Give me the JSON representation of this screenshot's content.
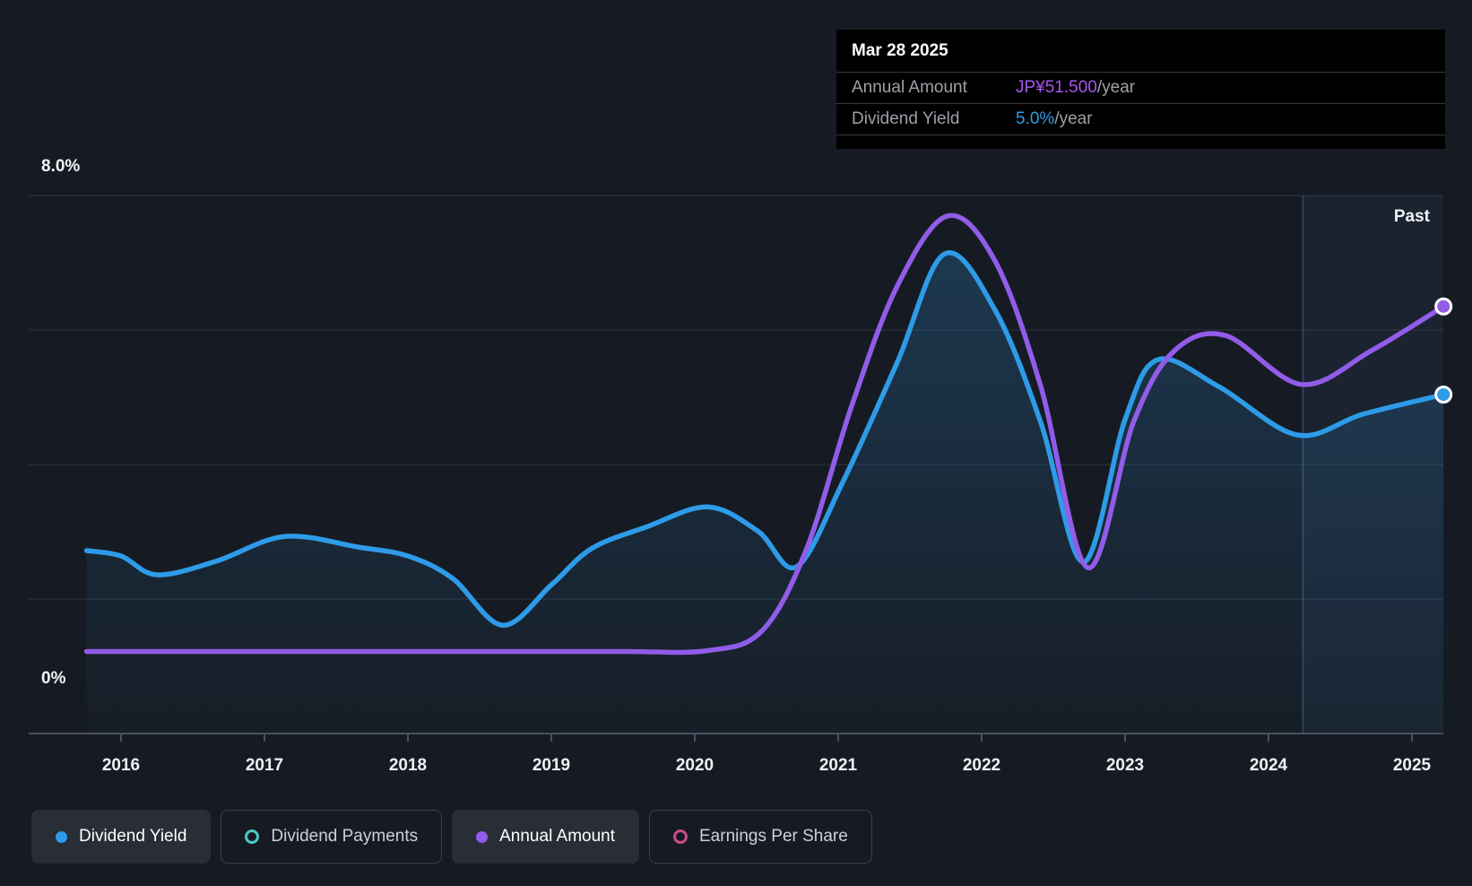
{
  "tooltip": {
    "date": "Mar 28 2025",
    "rows": [
      {
        "label": "Annual Amount",
        "value": "JP¥51.500",
        "suffix": "/year",
        "color": "#a855f0"
      },
      {
        "label": "Dividend Yield",
        "value": "5.0%",
        "suffix": "/year",
        "color": "#2e9be8"
      }
    ]
  },
  "axes": {
    "y_top_label": "8.0%",
    "y_bottom_label": "0%",
    "past_label": "Past"
  },
  "legend": {
    "items": [
      {
        "label": "Dividend Yield",
        "color": "#2e9be8",
        "style": "filled",
        "active": true
      },
      {
        "label": "Dividend Payments",
        "color": "#4ec9c0",
        "style": "hollow",
        "active": false
      },
      {
        "label": "Annual Amount",
        "color": "#915ce8",
        "style": "filled",
        "active": true
      },
      {
        "label": "Earnings Per Share",
        "color": "#ce4a8c",
        "style": "hollow",
        "active": false
      }
    ]
  },
  "chart_data": {
    "type": "line",
    "x_ticks": [
      2016,
      2017,
      2018,
      2019,
      2020,
      2021,
      2022,
      2023,
      2024,
      2025
    ],
    "x_range": [
      2015.76,
      2025.22
    ],
    "ylim_pct": [
      0,
      8
    ],
    "y_gridlines_pct": [
      0,
      2,
      4,
      6,
      8
    ],
    "grid": true,
    "legend_position": "bottom",
    "past_band_start_year": 2024.24,
    "series": [
      {
        "name": "Dividend Yield",
        "unit": "percent",
        "color": "#2e9be8",
        "pct_per_unit": 1,
        "area": true,
        "end_marker": true,
        "points": [
          [
            2015.76,
            2.72
          ],
          [
            2016.0,
            2.64
          ],
          [
            2016.25,
            2.36
          ],
          [
            2016.66,
            2.56
          ],
          [
            2017.14,
            2.93
          ],
          [
            2017.66,
            2.77
          ],
          [
            2018.0,
            2.64
          ],
          [
            2018.31,
            2.31
          ],
          [
            2018.66,
            1.61
          ],
          [
            2019.0,
            2.21
          ],
          [
            2019.28,
            2.75
          ],
          [
            2019.66,
            3.07
          ],
          [
            2020.09,
            3.37
          ],
          [
            2020.44,
            3.01
          ],
          [
            2020.71,
            2.48
          ],
          [
            2021.03,
            3.73
          ],
          [
            2021.41,
            5.51
          ],
          [
            2021.74,
            7.13
          ],
          [
            2022.09,
            6.31
          ],
          [
            2022.41,
            4.64
          ],
          [
            2022.71,
            2.55
          ],
          [
            2023.0,
            4.67
          ],
          [
            2023.23,
            5.56
          ],
          [
            2023.66,
            5.15
          ],
          [
            2024.2,
            4.44
          ],
          [
            2024.66,
            4.75
          ],
          [
            2025.22,
            5.04
          ]
        ]
      },
      {
        "name": "Annual Amount",
        "unit": "JP¥/year",
        "color": "#915ce8",
        "pct_per_unit": 0.1233,
        "area": false,
        "end_marker": true,
        "points": [
          [
            2015.76,
            9.9
          ],
          [
            2016.5,
            9.9
          ],
          [
            2017.5,
            9.9
          ],
          [
            2018.5,
            9.9
          ],
          [
            2019.5,
            9.9
          ],
          [
            2020.09,
            10.0
          ],
          [
            2020.47,
            12.4
          ],
          [
            2020.78,
            22.3
          ],
          [
            2021.09,
            39.3
          ],
          [
            2021.41,
            53.9
          ],
          [
            2021.76,
            62.4
          ],
          [
            2022.09,
            57.1
          ],
          [
            2022.41,
            42.0
          ],
          [
            2022.74,
            20.0
          ],
          [
            2023.06,
            37.6
          ],
          [
            2023.34,
            46.1
          ],
          [
            2023.7,
            48.0
          ],
          [
            2024.23,
            42.1
          ],
          [
            2024.72,
            46.2
          ],
          [
            2025.22,
            51.5
          ]
        ]
      }
    ]
  }
}
